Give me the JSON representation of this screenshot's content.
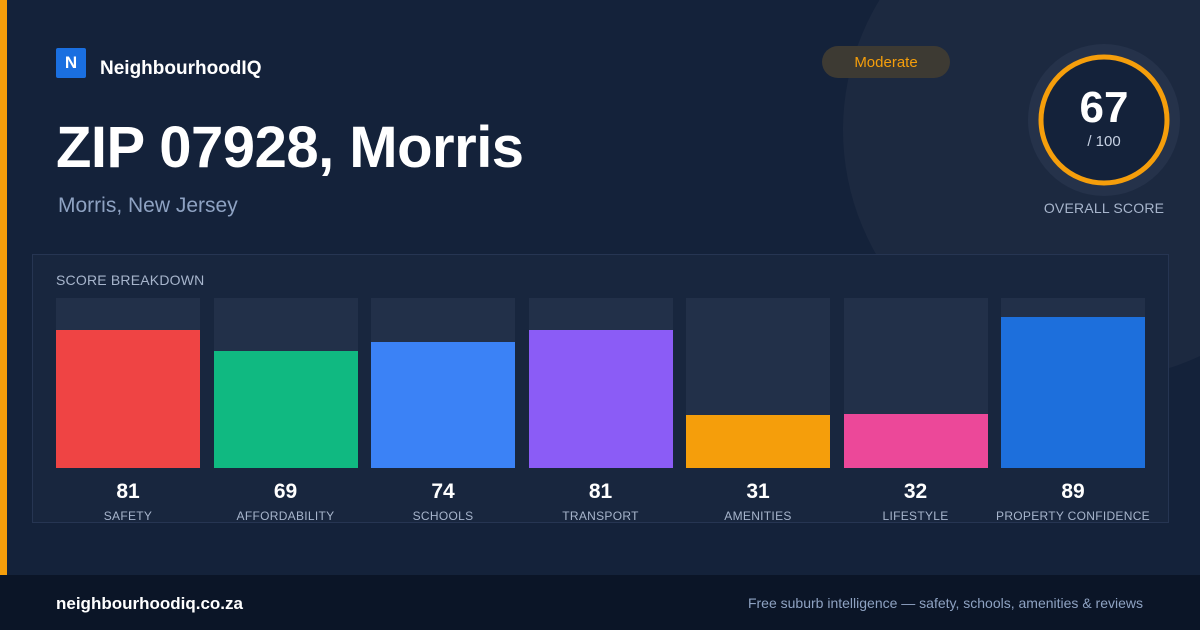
{
  "brand": {
    "logo_letter": "N",
    "name": "NeighbourhoodIQ"
  },
  "header": {
    "title": "ZIP 07928, Morris",
    "subtitle": "Morris, New Jersey"
  },
  "badge": {
    "label": "Moderate"
  },
  "overall": {
    "score": 67,
    "max_label": "/ 100",
    "label": "OVERALL SCORE",
    "ring_color": "#f59e0b"
  },
  "footer": {
    "url": "neighbourhoodiq.co.za",
    "tagline": "Free suburb intelligence — safety, schools, amenities & reviews"
  },
  "colors": {
    "accent": "#f59e0b",
    "brand": "#1a6fe0"
  },
  "chart_data": {
    "type": "bar",
    "title": "SCORE BREAKDOWN",
    "categories": [
      "SAFETY",
      "AFFORDABILITY",
      "SCHOOLS",
      "TRANSPORT",
      "AMENITIES",
      "LIFESTYLE",
      "PROPERTY CONFIDENCE"
    ],
    "values": [
      81,
      69,
      74,
      81,
      31,
      32,
      89
    ],
    "value_labels": [
      "81",
      "69",
      "74",
      "81",
      "31",
      "32",
      "89"
    ],
    "colors": [
      "#ef4444",
      "#10b981",
      "#3b82f6",
      "#8b5cf6",
      "#f59e0b",
      "#ec4899",
      "#1d6fdc"
    ],
    "ylim": [
      0,
      100
    ],
    "grid": false,
    "legend": "none"
  }
}
